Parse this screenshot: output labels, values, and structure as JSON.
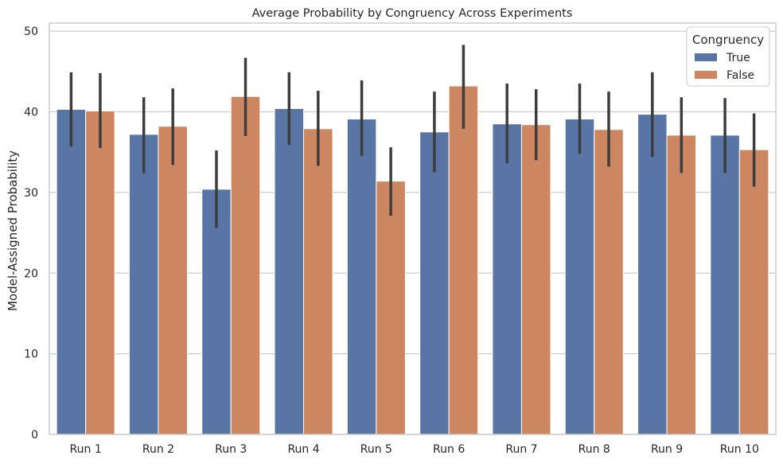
{
  "colors": {
    "true": "#5875a6",
    "false": "#cc8660",
    "errorbar": "#3d3d3d",
    "grid": "#cccccc",
    "frame": "#cccccc"
  },
  "chart_data": {
    "type": "bar",
    "title": "Average Probability by Congruency Across Experiments",
    "xlabel": "",
    "ylabel": "Model-Assigned Probability",
    "ylim": [
      0,
      51
    ],
    "yticks": [
      0,
      10,
      20,
      30,
      40,
      50
    ],
    "grid": "horizontal",
    "legend": {
      "title": "Congruency",
      "placement": "top-right"
    },
    "categories": [
      "Run 1",
      "Run 2",
      "Run 3",
      "Run 4",
      "Run 5",
      "Run 6",
      "Run 7",
      "Run 8",
      "Run 9",
      "Run 10"
    ],
    "series": [
      {
        "name": "True",
        "color_key": "true",
        "values": [
          40.3,
          37.2,
          30.4,
          40.4,
          39.1,
          37.5,
          38.5,
          39.1,
          39.7,
          37.1
        ],
        "err_low": [
          35.7,
          32.4,
          25.6,
          35.9,
          34.5,
          32.5,
          33.6,
          34.8,
          34.4,
          32.4
        ],
        "err_high": [
          44.9,
          41.8,
          35.2,
          44.9,
          43.9,
          42.5,
          43.5,
          43.5,
          44.9,
          41.7
        ]
      },
      {
        "name": "False",
        "color_key": "false",
        "values": [
          40.1,
          38.2,
          41.9,
          37.9,
          31.4,
          43.2,
          38.4,
          37.8,
          37.1,
          35.3
        ],
        "err_low": [
          35.5,
          33.4,
          37.0,
          33.3,
          27.1,
          37.9,
          34.0,
          33.2,
          32.4,
          30.7
        ],
        "err_high": [
          44.8,
          42.9,
          46.7,
          42.6,
          35.6,
          48.3,
          42.8,
          42.5,
          41.8,
          39.8
        ]
      }
    ]
  }
}
